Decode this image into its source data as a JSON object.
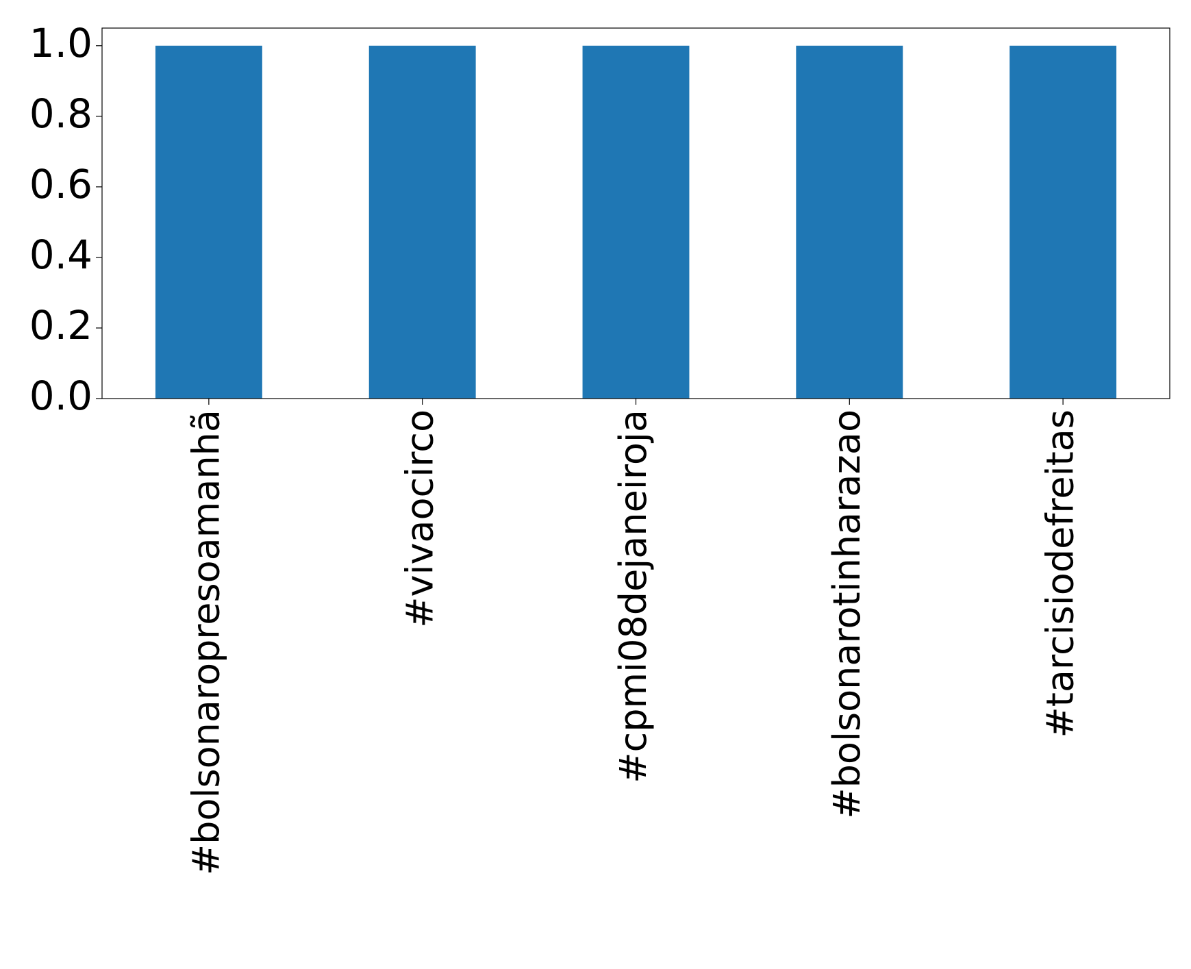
{
  "chart_data": {
    "type": "bar",
    "categories": [
      "#bolsonaropresoamanhã",
      "#vivaocirco",
      "#cpmi08dejaneiroja",
      "#bolsonarotinharazao",
      "#tarcisiodefreitas"
    ],
    "values": [
      1,
      1,
      1,
      1,
      1
    ],
    "color": "#1f77b4",
    "ylim": [
      0,
      1.05
    ],
    "yticks": [
      {
        "value": 0,
        "label": "0.0"
      },
      {
        "value": 0.2,
        "label": "0.2"
      },
      {
        "value": 0.4,
        "label": "0.4"
      },
      {
        "value": 0.6,
        "label": "0.6"
      },
      {
        "value": 0.8,
        "label": "0.8"
      },
      {
        "value": 1,
        "label": "1.0"
      }
    ],
    "grid": false
  }
}
